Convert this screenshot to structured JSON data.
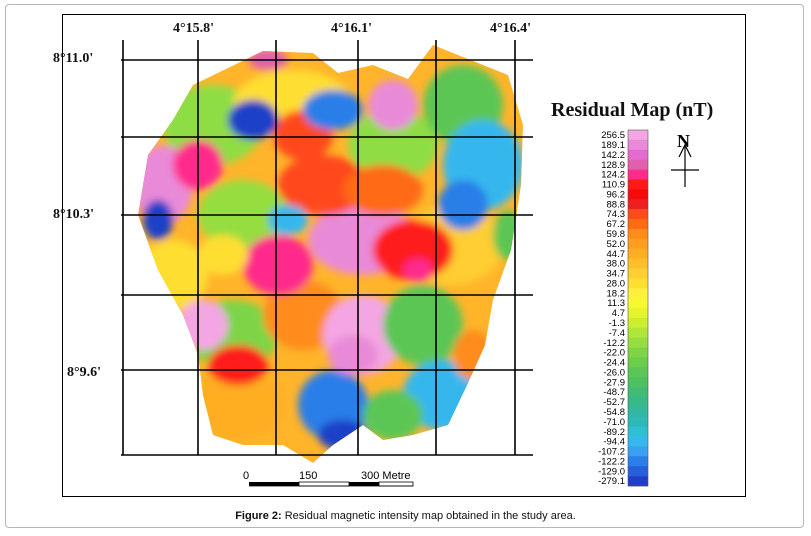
{
  "coords": {
    "top": [
      "4°15.8'",
      "4°16.1'",
      "4°16.4'"
    ],
    "left": [
      "8°11.0'",
      "8°10.3'",
      "8°9.6'"
    ]
  },
  "legend": {
    "title": "Residual Map (nT)",
    "labels": [
      "256.5",
      "189.1",
      "142.2",
      "128.9",
      "124.2",
      "110.9",
      "96.2",
      "88.8",
      "74.3",
      "67.2",
      "59.8",
      "52.0",
      "44.7",
      "38.0",
      "34.7",
      "28.0",
      "18.2",
      "11.3",
      "4.7",
      "-1.3",
      "-7.4",
      "-12.2",
      "-22.0",
      "-24.4",
      "-26.0",
      "-27.9",
      "-48.7",
      "-52.7",
      "-54.8",
      "-71.0",
      "-89.2",
      "-94.4",
      "-107.2",
      "-122.2",
      "-129.0",
      "-279.1"
    ],
    "colors": [
      "#f4a6e4",
      "#e98ad8",
      "#e56ad0",
      "#e060b0",
      "#ff2c8c",
      "#ff1a1a",
      "#f60a0a",
      "#ef1f1f",
      "#ff4a1a",
      "#ff6a14",
      "#ff8c1a",
      "#ff9e1e",
      "#ffae22",
      "#ffbe2a",
      "#ffce30",
      "#ffde32",
      "#fff03a",
      "#f8f830",
      "#e4f52c",
      "#ccee2c",
      "#aee63a",
      "#96dd40",
      "#7ed446",
      "#6acd4c",
      "#5cc655",
      "#4fc060",
      "#43bb72",
      "#39b888",
      "#33b7a0",
      "#2fb8b8",
      "#2fbfd4",
      "#36b7ee",
      "#3aa0f0",
      "#2c7ee8",
      "#2860dc",
      "#1f3fc8"
    ]
  },
  "north": {
    "label": "N"
  },
  "scale": {
    "labels": [
      "0",
      "150",
      "300 Metre"
    ]
  },
  "caption": {
    "figure": "Figure 2:",
    "text": "Residual magnetic intensity map obtained in the study area."
  }
}
